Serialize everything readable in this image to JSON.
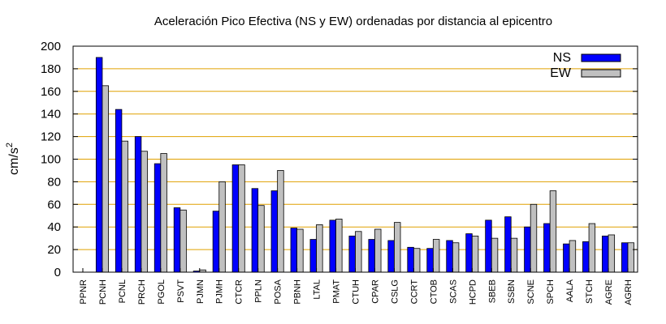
{
  "chart_data": {
    "type": "bar",
    "title": "Aceleración Pico Efectiva (NS y EW) ordenadas por distancia al epicentro",
    "ylabel": "cm/s",
    "ylabel_sup": "2",
    "xlabel": "",
    "ylim": [
      0,
      200
    ],
    "yticks": [
      0,
      20,
      40,
      60,
      80,
      100,
      120,
      140,
      160,
      180,
      200
    ],
    "grid": "horizontal",
    "legend_position": "top-right",
    "colors": {
      "NS": "#0000ff",
      "EW": "#c0c0c0",
      "grid": "#e0a000"
    },
    "categories": [
      "PPNR",
      "PCNH",
      "PCNL",
      "PRCH",
      "PGOL",
      "PSVT",
      "PJMN",
      "PJMH",
      "CTCR",
      "PPLN",
      "POSA",
      "PBNH",
      "LTAL",
      "PMAT",
      "CTUH",
      "CPAR",
      "CSLG",
      "CCRT",
      "CTOB",
      "SCAS",
      "HCPD",
      "SBEB",
      "SSBN",
      "SCNE",
      "SPCH",
      "AALA",
      "STCH",
      "AGRE",
      "AGRH"
    ],
    "series": [
      {
        "name": "NS",
        "values": [
          0,
          190,
          144,
          120,
          96,
          57,
          1,
          54,
          95,
          74,
          72,
          39,
          29,
          46,
          32,
          29,
          28,
          22,
          21,
          28,
          34,
          46,
          49,
          40,
          43,
          25,
          27,
          32,
          26
        ]
      },
      {
        "name": "EW",
        "values": [
          0,
          165,
          116,
          107,
          105,
          55,
          2,
          80,
          95,
          59,
          90,
          38,
          42,
          47,
          36,
          38,
          44,
          21,
          29,
          26,
          32,
          30,
          30,
          60,
          72,
          28,
          43,
          33,
          26
        ]
      }
    ]
  }
}
